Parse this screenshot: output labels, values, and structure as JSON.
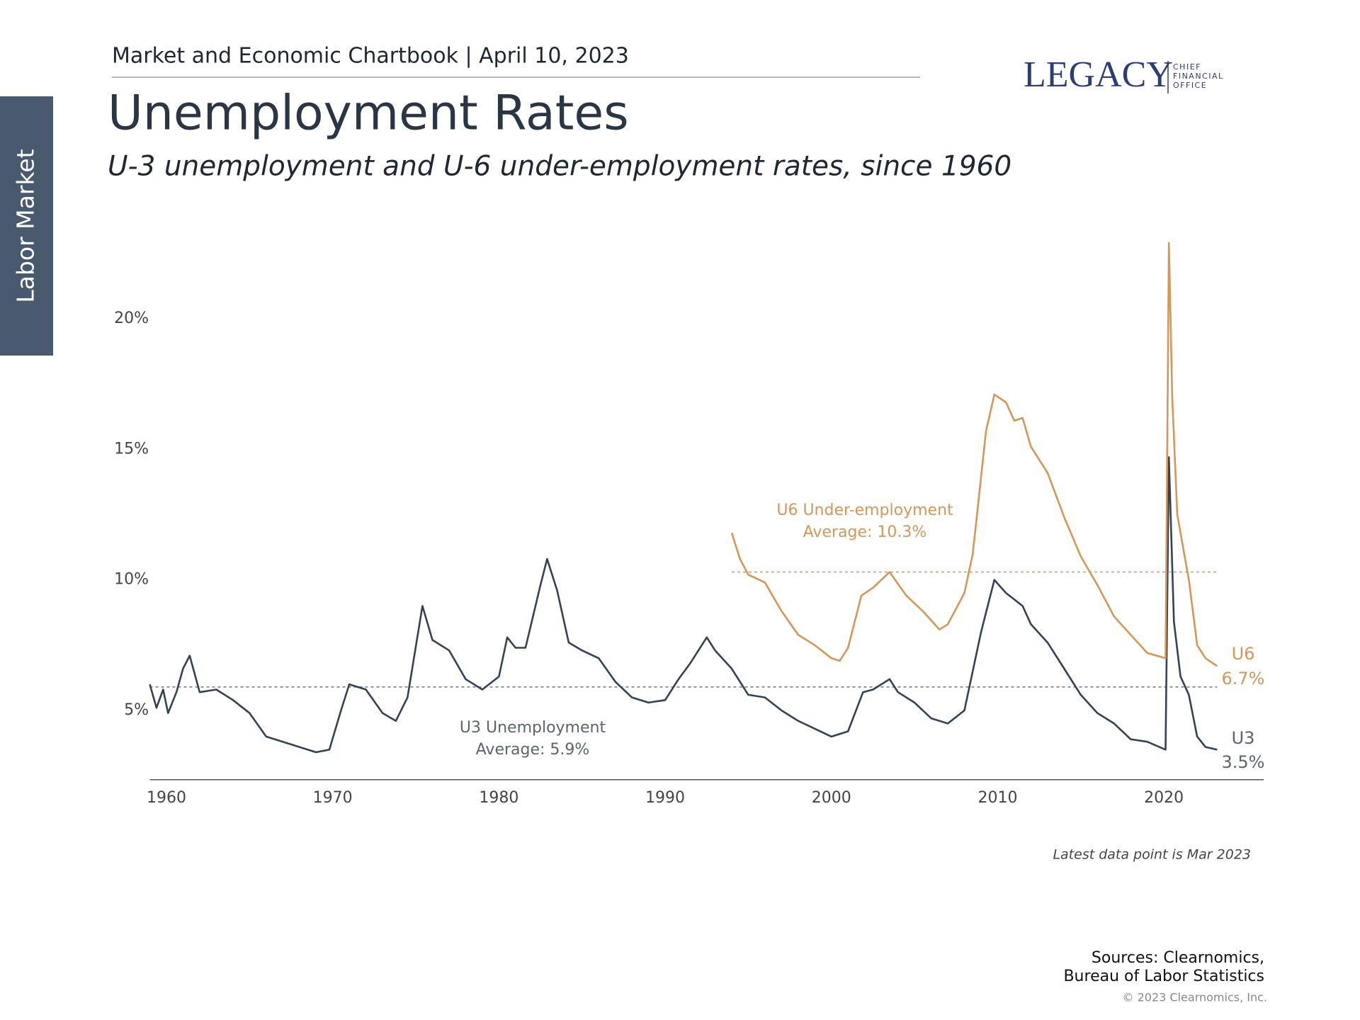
{
  "header": "Market and Economic Chartbook | April 10, 2023",
  "section": "Labor Market",
  "logo": {
    "name": "LEGACY",
    "lines": [
      "CHIEF",
      "FINANCIAL",
      "OFFICE"
    ]
  },
  "chart_data": {
    "type": "line",
    "title": "Unemployment Rates",
    "subtitle": "U-3 unemployment and U-6 under-employment rates, since 1960",
    "xlim": [
      1959,
      2026
    ],
    "xticks": [
      1960,
      1970,
      1980,
      1990,
      2000,
      2010,
      2020
    ],
    "ylim": [
      2.35,
      24
    ],
    "yticks": [
      {
        "value": 5,
        "label": "5%"
      },
      {
        "value": 10,
        "label": "10%"
      },
      {
        "value": 15,
        "label": "15%"
      },
      {
        "value": 20,
        "label": "20%"
      }
    ],
    "series": [
      {
        "name": "U3",
        "color": "#344256",
        "last_value_label": "3.5%",
        "annotation": "U3 Unemployment",
        "average": 5.9,
        "average_label": "Average: 5.9%",
        "x": [
          1959,
          1959.4,
          1959.8,
          1960.1,
          1960.6,
          1961.0,
          1961.4,
          1962.0,
          1963.0,
          1964.0,
          1965.0,
          1966.0,
          1967.0,
          1968.0,
          1969.0,
          1969.8,
          1970.5,
          1971.0,
          1972.0,
          1973.0,
          1973.8,
          1974.5,
          1975.4,
          1976.0,
          1977.0,
          1978.0,
          1979.0,
          1980.0,
          1980.5,
          1981.0,
          1981.6,
          1982.5,
          1982.9,
          1983.5,
          1984.2,
          1985.0,
          1986.0,
          1987.0,
          1988.0,
          1989.0,
          1990.0,
          1990.8,
          1991.5,
          1992.5,
          1993.0,
          1994.0,
          1995.0,
          1996.0,
          1997.0,
          1998.0,
          1999.0,
          2000.0,
          2001.0,
          2001.9,
          2002.5,
          2003.5,
          2004.0,
          2005.0,
          2006.0,
          2007.0,
          2008.0,
          2009.0,
          2009.8,
          2010.5,
          2011.5,
          2012.0,
          2013.0,
          2014.0,
          2015.0,
          2016.0,
          2017.0,
          2018.0,
          2019.0,
          2020.1,
          2020.3,
          2020.6,
          2021.0,
          2021.5,
          2022.0,
          2022.5,
          2023.2
        ],
        "values": [
          6.0,
          5.1,
          5.8,
          4.9,
          5.7,
          6.6,
          7.1,
          5.7,
          5.8,
          5.4,
          4.9,
          4.0,
          3.8,
          3.6,
          3.4,
          3.5,
          5.0,
          6.0,
          5.8,
          4.9,
          4.6,
          5.5,
          9.0,
          7.7,
          7.3,
          6.2,
          5.8,
          6.3,
          7.8,
          7.4,
          7.4,
          9.8,
          10.8,
          9.6,
          7.6,
          7.3,
          7.0,
          6.1,
          5.5,
          5.3,
          5.4,
          6.2,
          6.8,
          7.8,
          7.3,
          6.6,
          5.6,
          5.5,
          5.0,
          4.6,
          4.3,
          4.0,
          4.2,
          5.7,
          5.8,
          6.2,
          5.7,
          5.3,
          4.7,
          4.5,
          5.0,
          8.0,
          10.0,
          9.5,
          9.0,
          8.3,
          7.6,
          6.6,
          5.6,
          4.9,
          4.5,
          3.9,
          3.8,
          3.5,
          14.7,
          8.4,
          6.3,
          5.6,
          4.0,
          3.6,
          3.5
        ]
      },
      {
        "name": "U6",
        "color": "#d4975a",
        "last_value_label": "6.7%",
        "annotation": "U6 Under-employment",
        "average": 10.3,
        "average_label": "Average: 10.3%",
        "x": [
          1994.0,
          1994.5,
          1995.0,
          1996.0,
          1997.0,
          1998.0,
          1999.0,
          2000.0,
          2000.5,
          2001.0,
          2001.8,
          2002.5,
          2003.5,
          2004.5,
          2005.5,
          2006.5,
          2007.0,
          2008.0,
          2008.5,
          2009.3,
          2009.8,
          2010.5,
          2011.0,
          2011.5,
          2012.0,
          2013.0,
          2014.0,
          2015.0,
          2016.0,
          2017.0,
          2018.0,
          2019.0,
          2020.1,
          2020.3,
          2020.5,
          2020.8,
          2021.5,
          2022.0,
          2022.5,
          2023.2
        ],
        "values": [
          11.8,
          10.8,
          10.2,
          9.9,
          8.8,
          7.9,
          7.5,
          7.0,
          6.9,
          7.4,
          9.4,
          9.7,
          10.3,
          9.4,
          8.8,
          8.1,
          8.3,
          9.5,
          11.0,
          15.7,
          17.1,
          16.8,
          16.1,
          16.2,
          15.1,
          14.1,
          12.4,
          10.9,
          9.8,
          8.6,
          7.9,
          7.2,
          7.0,
          22.9,
          17.0,
          12.5,
          10.0,
          7.5,
          7.0,
          6.7
        ]
      }
    ],
    "note": "Latest data point is Mar 2023",
    "sources": [
      "Sources: Clearnomics,",
      "Bureau of Labor Statistics"
    ],
    "copyright": "© 2023 Clearnomics, Inc."
  }
}
